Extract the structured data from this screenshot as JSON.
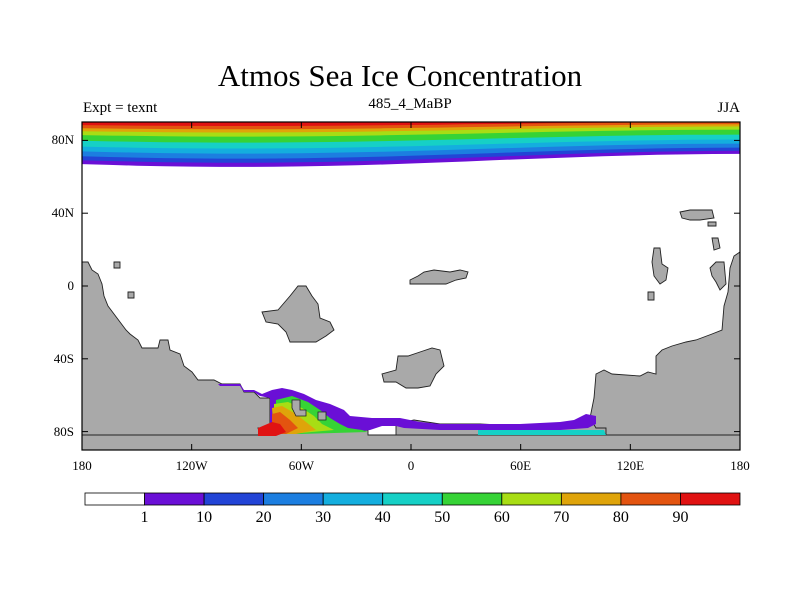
{
  "title": "Atmos Sea Ice Concentration",
  "subtitle": "485_4_MaBP",
  "left_label": "Expt = texnt",
  "right_label": "JJA",
  "axes": {
    "y_ticks": [
      {
        "label": "80N",
        "lat": 80
      },
      {
        "label": "40N",
        "lat": 40
      },
      {
        "label": "0",
        "lat": 0
      },
      {
        "label": "40S",
        "lat": -40
      },
      {
        "label": "80S",
        "lat": -80
      }
    ],
    "x_ticks": [
      {
        "label": "180",
        "lon": -180
      },
      {
        "label": "120W",
        "lon": -120
      },
      {
        "label": "60W",
        "lon": -60
      },
      {
        "label": "0",
        "lon": 0
      },
      {
        "label": "60E",
        "lon": 60
      },
      {
        "label": "120E",
        "lon": 120
      },
      {
        "label": "180",
        "lon": 180
      }
    ]
  },
  "colorbar": {
    "labels": [
      "1",
      "10",
      "20",
      "30",
      "40",
      "50",
      "60",
      "70",
      "80",
      "90"
    ],
    "colors": [
      "#ffffff",
      "#6a0fd6",
      "#2244d6",
      "#1c7ee0",
      "#14aede",
      "#16d0c6",
      "#36d336",
      "#a8dd14",
      "#dfa40a",
      "#e35410",
      "#e01212"
    ]
  },
  "land_color": "#a9a9a9",
  "arctic_bands": [
    {
      "lat": 89,
      "color": "#e01212"
    },
    {
      "lat": 87.5,
      "color": "#e35410"
    },
    {
      "lat": 86,
      "color": "#dfa40a"
    },
    {
      "lat": 84,
      "color": "#a8dd14"
    },
    {
      "lat": 81,
      "color": "#36d336"
    },
    {
      "lat": 78,
      "color": "#16d0c6"
    },
    {
      "lat": 75.5,
      "color": "#14aede"
    },
    {
      "lat": 73,
      "color": "#1c7ee0"
    },
    {
      "lat": 71,
      "color": "#2244d6"
    },
    {
      "lat": 69,
      "color": "#6a0fd6"
    }
  ]
}
